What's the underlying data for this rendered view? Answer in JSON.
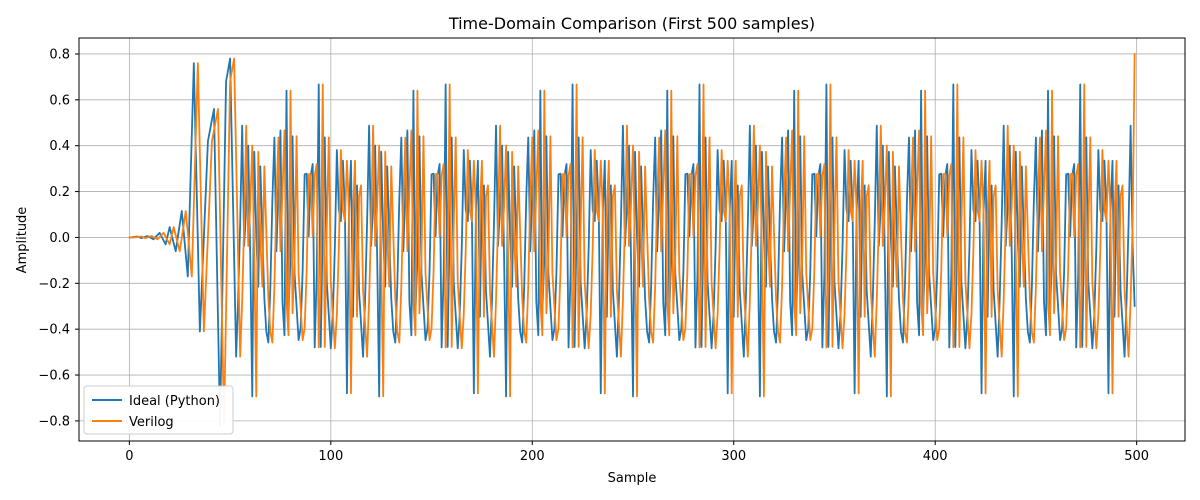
{
  "chart_data": {
    "type": "line",
    "title": "Time-Domain Comparison (First 500 samples)",
    "xlabel": "Sample",
    "ylabel": "Amplitude",
    "xlim": [
      -25,
      524
    ],
    "ylim": [
      -0.8876,
      0.8696
    ],
    "grid": true,
    "legend_position": "lower-left",
    "x_ticks": [
      0,
      100,
      200,
      300,
      400,
      500
    ],
    "x_tick_labels": [
      "0",
      "100",
      "200",
      "300",
      "400",
      "500"
    ],
    "y_ticks": [
      -0.8,
      -0.6,
      -0.4,
      -0.2,
      0.0,
      0.2,
      0.4,
      0.6,
      0.8
    ],
    "y_tick_labels": [
      "−0.8",
      "−0.6",
      "−0.4",
      "−0.2",
      "0.0",
      "0.2",
      "0.4",
      "0.6",
      "0.8"
    ],
    "series": [
      {
        "name": "Ideal (Python)",
        "color": "#1f77b4",
        "x_start": 0,
        "x_step": 1,
        "num_samples": 500,
        "delay_samples": 0,
        "transient_peaks": [
          [
            0,
            0.0
          ],
          [
            4,
            0.004
          ],
          [
            6,
            -0.003
          ],
          [
            9,
            0.006
          ],
          [
            12,
            -0.008
          ],
          [
            15,
            0.02
          ],
          [
            18,
            -0.03
          ],
          [
            20,
            0.045
          ],
          [
            23,
            -0.06
          ],
          [
            26,
            0.115
          ],
          [
            29,
            -0.17
          ],
          [
            32,
            0.76
          ],
          [
            35,
            -0.41
          ],
          [
            39,
            0.42
          ],
          [
            42,
            0.56
          ],
          [
            45,
            -0.82
          ],
          [
            48,
            0.68
          ],
          [
            50,
            0.78
          ],
          [
            53,
            -0.52
          ]
        ],
        "steady_state": {
          "start_sample": 53,
          "period_samples": 15.75,
          "cycle_points": [
            [
              0.0,
              -0.52
            ],
            [
              1.5,
              -0.15
            ],
            [
              3.1,
              0.53
            ],
            [
              4.1,
              -0.1
            ],
            [
              6.3,
              0.48
            ],
            [
              7.9,
              -0.8
            ],
            [
              9.4,
              0.8
            ],
            [
              10.4,
              -0.53
            ],
            [
              12.4,
              0.52
            ],
            [
              13.2,
              -0.15
            ],
            [
              15.75,
              -0.52
            ]
          ]
        },
        "end_value": -0.3
      },
      {
        "name": "Verilog",
        "color": "#ff7f0e",
        "x_start": 0,
        "x_step": 1,
        "num_samples": 500,
        "delay_samples": 2,
        "transient_peaks": [
          [
            0,
            0.0
          ],
          [
            4,
            0.004
          ],
          [
            6,
            -0.003
          ],
          [
            9,
            0.006
          ],
          [
            12,
            -0.008
          ],
          [
            15,
            0.02
          ],
          [
            18,
            -0.03
          ],
          [
            20,
            0.045
          ],
          [
            23,
            -0.06
          ],
          [
            26,
            0.115
          ],
          [
            29,
            -0.17
          ],
          [
            32,
            0.76
          ],
          [
            35,
            -0.41
          ],
          [
            39,
            0.42
          ],
          [
            42,
            0.56
          ],
          [
            45,
            -0.82
          ],
          [
            48,
            0.68
          ],
          [
            50,
            0.78
          ],
          [
            53,
            -0.52
          ]
        ],
        "steady_state": {
          "start_sample": 53,
          "period_samples": 15.75,
          "cycle_points": [
            [
              0.0,
              -0.52
            ],
            [
              1.5,
              -0.15
            ],
            [
              3.1,
              0.53
            ],
            [
              4.1,
              -0.1
            ],
            [
              6.3,
              0.48
            ],
            [
              7.9,
              -0.8
            ],
            [
              9.4,
              0.8
            ],
            [
              10.4,
              -0.53
            ],
            [
              12.4,
              0.52
            ],
            [
              13.2,
              -0.15
            ],
            [
              15.75,
              -0.52
            ]
          ]
        },
        "end_value": 0.8
      }
    ],
    "style": {
      "grid_color": "#b0b0b0",
      "axis_color": "#000000",
      "background": "#ffffff",
      "legend_border_color": "#cccccc"
    }
  }
}
